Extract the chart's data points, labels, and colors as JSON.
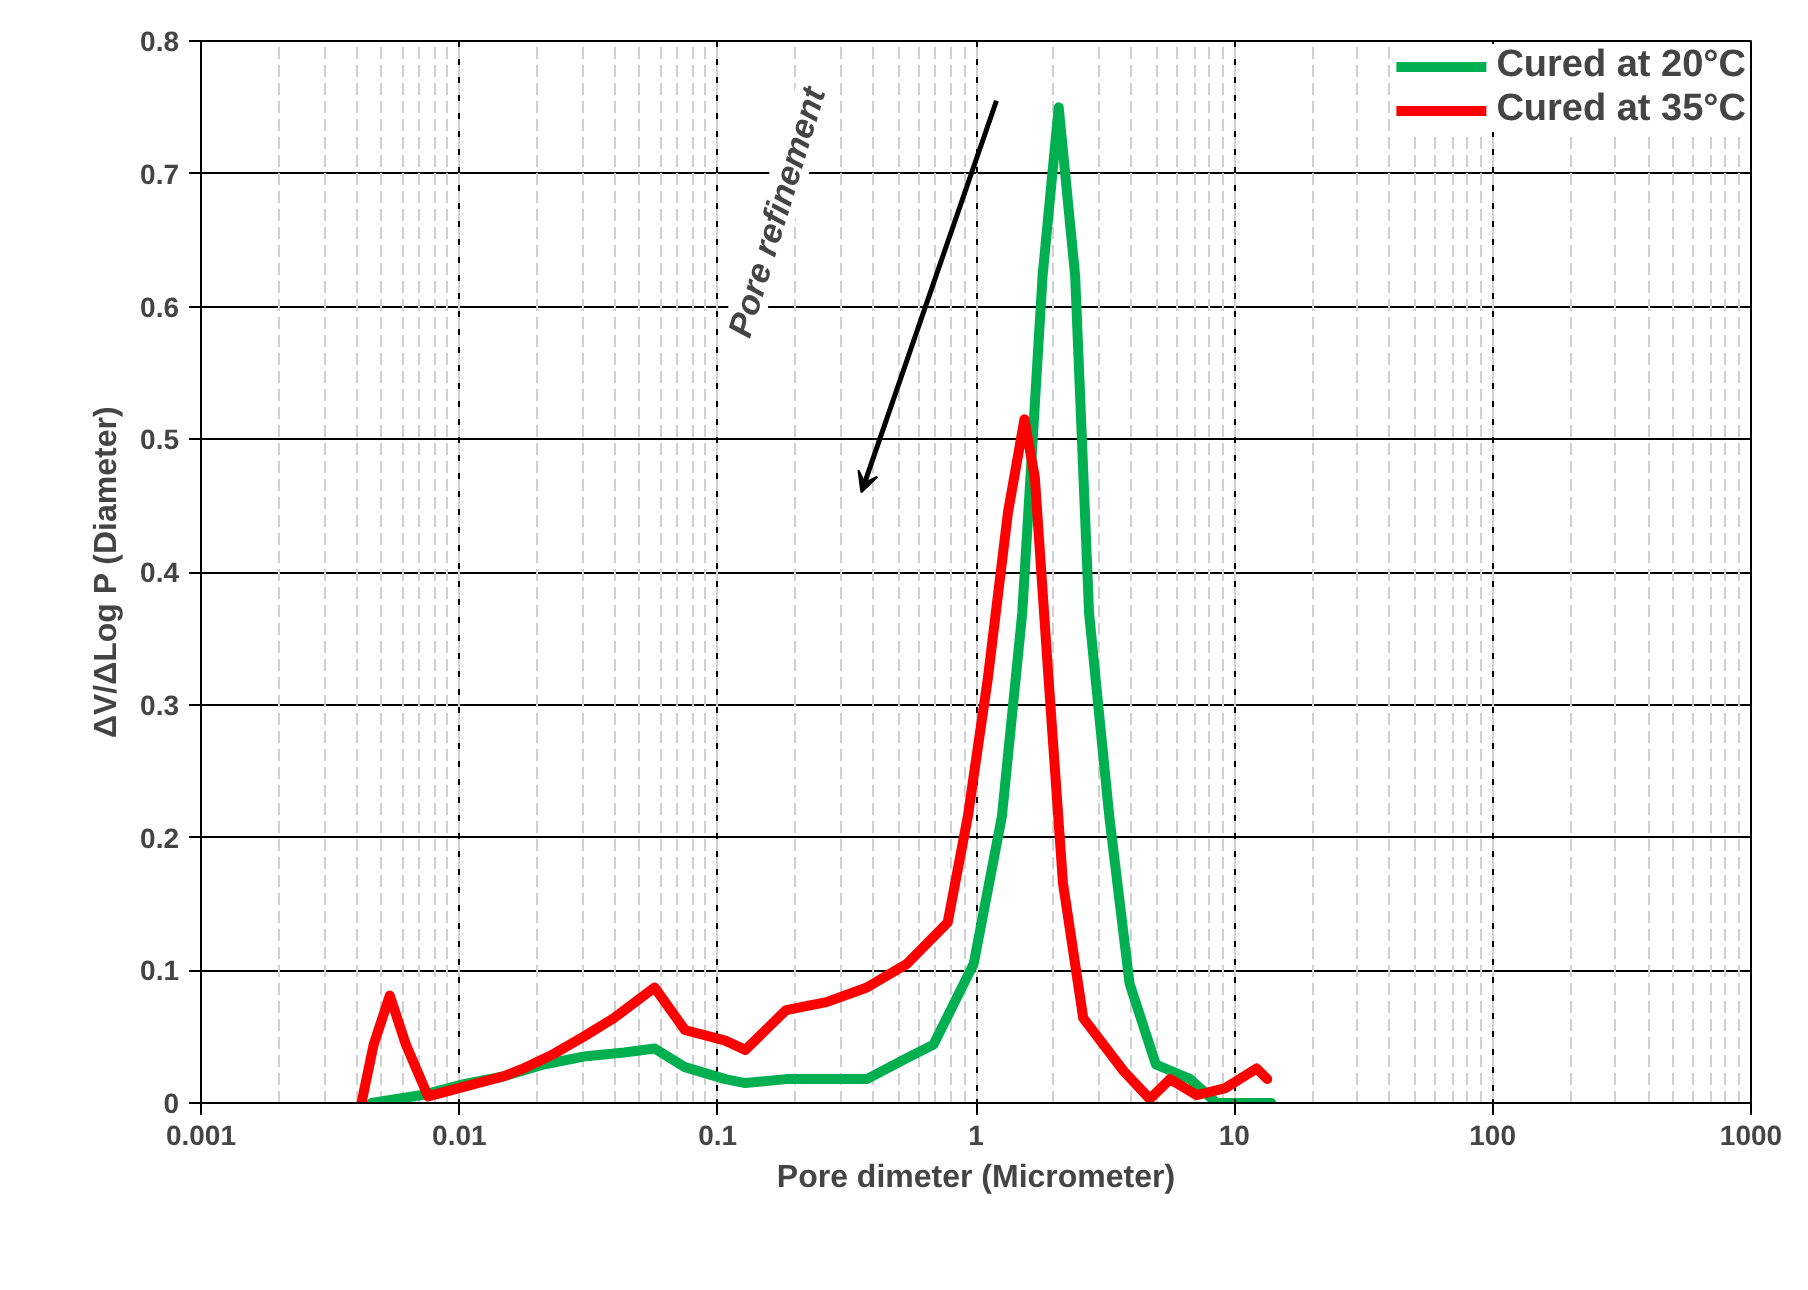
{
  "chart_data": {
    "type": "line",
    "xlabel": "Pore dimeter (Micrometer)",
    "ylabel": "ΔV/ΔLog P (Diameter)",
    "log": "x",
    "grid": true,
    "legend": "top right",
    "line_style": "solid",
    "marker": "none",
    "xlim": [
      0.001,
      1000
    ],
    "ylim": [
      0,
      0.8
    ],
    "xticks": [
      {
        "value": 0.001,
        "label": "0.001"
      },
      {
        "value": 0.01,
        "label": "0.01"
      },
      {
        "value": 0.1,
        "label": "0.1"
      },
      {
        "value": 1,
        "label": "1"
      },
      {
        "value": 10,
        "label": "10"
      },
      {
        "value": 100,
        "label": "100"
      },
      {
        "value": 1000,
        "label": "1000"
      }
    ],
    "yticks": [
      0,
      0.1,
      0.2,
      0.3,
      0.4,
      0.5,
      0.6,
      0.7,
      0.8
    ],
    "annotations": [
      "Pore refinement"
    ],
    "series": [
      {
        "name": "Cured at 20°C",
        "color": "#00b050",
        "x": [
          0.00457,
          0.00718,
          0.0103,
          0.0148,
          0.0212,
          0.0303,
          0.0435,
          0.057,
          0.0747,
          0.107,
          0.128,
          0.184,
          0.264,
          0.378,
          0.542,
          0.685,
          0.98,
          1.26,
          1.51,
          1.81,
          2.09,
          2.42,
          2.74,
          3.28,
          3.93,
          4.97,
          6.75,
          8.53,
          13.9
        ],
        "values": [
          0,
          0.006,
          0.014,
          0.02,
          0.029,
          0.035,
          0.038,
          0.041,
          0.027,
          0.018,
          0.015,
          0.018,
          0.018,
          0.018,
          0.034,
          0.044,
          0.105,
          0.216,
          0.369,
          0.623,
          0.75,
          0.623,
          0.369,
          0.216,
          0.09,
          0.029,
          0.018,
          0,
          0
        ]
      },
      {
        "name": "Cured at 35°C",
        "color": "#ff0000",
        "x": [
          0.00418,
          0.00466,
          0.00538,
          0.00621,
          0.00757,
          0.0103,
          0.0148,
          0.0177,
          0.0232,
          0.0303,
          0.0397,
          0.057,
          0.0747,
          0.107,
          0.128,
          0.184,
          0.22,
          0.264,
          0.378,
          0.542,
          0.777,
          0.93,
          1.11,
          1.33,
          1.54,
          1.69,
          1.91,
          2.17,
          2.6,
          3.73,
          4.71,
          5.64,
          7.13,
          9.17,
          12.2,
          13.4
        ],
        "values": [
          0,
          0.044,
          0.081,
          0.044,
          0.005,
          0.012,
          0.02,
          0.026,
          0.037,
          0.05,
          0.064,
          0.087,
          0.055,
          0.047,
          0.04,
          0.07,
          0.073,
          0.076,
          0.087,
          0.105,
          0.136,
          0.216,
          0.319,
          0.445,
          0.515,
          0.471,
          0.319,
          0.166,
          0.064,
          0.024,
          0.003,
          0.018,
          0.006,
          0.011,
          0.026,
          0.018
        ]
      }
    ]
  }
}
